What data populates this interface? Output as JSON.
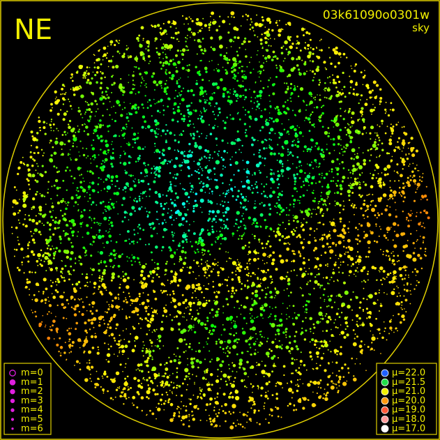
{
  "header": {
    "label": "NE",
    "id": "03k61090o0301w",
    "subtitle": "sky"
  },
  "magnitude_legend": {
    "items": [
      "m=0",
      "m=1",
      "m=2",
      "m=3",
      "m=4",
      "m=5",
      "m=6"
    ]
  },
  "sky_legend": {
    "items": [
      {
        "label": "μ=22.0",
        "color": "#1f5fff"
      },
      {
        "label": "μ=21.5",
        "color": "#22e04a"
      },
      {
        "label": "μ=21.0",
        "color": "#f2f000"
      },
      {
        "label": "μ=20.0",
        "color": "#ff9a10"
      },
      {
        "label": "μ=19.0",
        "color": "#ff5a3a"
      },
      {
        "label": "μ=18.0",
        "color": "#ff9c9c"
      },
      {
        "label": "μ=17.0",
        "color": "#ffffff"
      }
    ]
  }
}
